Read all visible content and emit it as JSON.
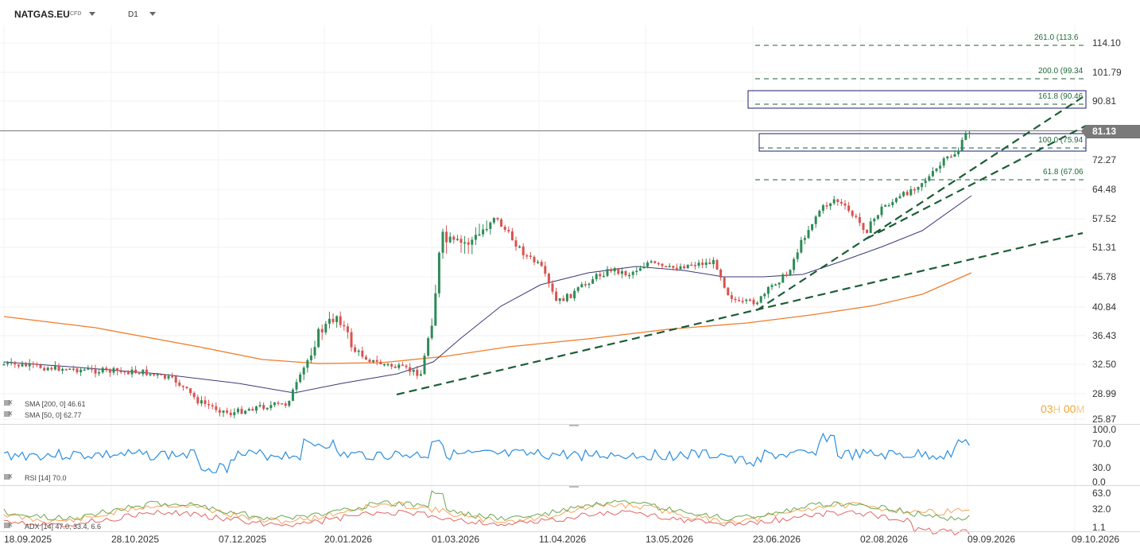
{
  "toolbar": {
    "symbol": "NATGAS.EU",
    "instrument_type": "CFD",
    "timeframe": "D1"
  },
  "price_axis": [
    "114.10",
    "101.79",
    "90.81",
    "72.27",
    "64.48",
    "57.52",
    "51.31",
    "45.78",
    "40.84",
    "36.43",
    "32.50",
    "28.99",
    "25.87"
  ],
  "current_price": "81.13",
  "fibonacci": [
    {
      "label": "261.0 (113.6"
    },
    {
      "label": "200.0 (99.34"
    },
    {
      "label": "161.8 (90.46"
    },
    {
      "label": "100.0 (75.94"
    },
    {
      "label": "61.8 (67.06"
    }
  ],
  "timer": {
    "hours": "03",
    "h_unit": "H",
    "minutes": "00",
    "m_unit": "M"
  },
  "indicators": {
    "sma200": "SMA [200, 0] 46.61",
    "sma50": "SMA [50, 0] 62.77",
    "rsi": "RSI [14] 70.0",
    "adx": "ADX [14] 47.0, 33.4, 6.6"
  },
  "rsi_axis": [
    "100.0",
    "70.0",
    "30.0",
    "0.0"
  ],
  "adx_axis": [
    "63.0",
    "32.0",
    "1.1"
  ],
  "dates": [
    "18.09.2025",
    "28.10.2025",
    "07.12.2025",
    "20.01.2026",
    "01.03.2026",
    "11.04.2026",
    "13.05.2026",
    "23.06.2026",
    "02.08.2026",
    "09.09.2026",
    "09.10.2026"
  ],
  "colors": {
    "bull": "#2e8b57",
    "bear": "#d9534f",
    "sma200": "#f07c2a",
    "sma50": "#3b3a7a",
    "rsi": "#2b8ee0",
    "trend": "#1b5e35",
    "fib": "#1b5e35"
  }
}
